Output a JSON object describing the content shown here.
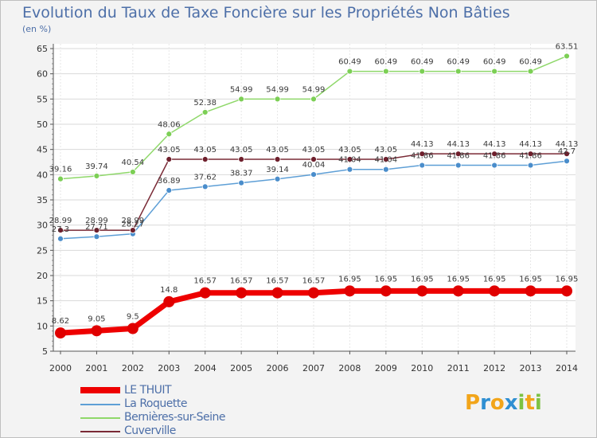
{
  "chart_data": {
    "type": "line",
    "title": "Evolution du Taux de Taxe Foncière sur les Propriétés Non Bâties",
    "ylabel": "(en %)",
    "ylim": [
      5,
      65
    ],
    "yticks": [
      5,
      10,
      15,
      20,
      25,
      30,
      35,
      40,
      45,
      50,
      55,
      60,
      65
    ],
    "categories": [
      "2000",
      "2001",
      "2002",
      "2003",
      "2004",
      "2005",
      "2006",
      "2007",
      "2008",
      "2009",
      "2010",
      "2011",
      "2012",
      "2013",
      "2014"
    ],
    "series": [
      {
        "name": "Bernières-sur-Seine",
        "color": "#8fd86a",
        "marker": "#7ccf55",
        "values": [
          39.16,
          39.74,
          40.54,
          48.06,
          52.38,
          54.99,
          54.99,
          54.99,
          60.49,
          60.49,
          60.49,
          60.49,
          60.49,
          60.49,
          63.51
        ],
        "labels": [
          "39.16",
          "39.74",
          "40.54",
          "48.06",
          "52.38",
          "54.99",
          "54.99",
          "54.99",
          "60.49",
          "60.49",
          "60.49",
          "60.49",
          "60.49",
          "60.49",
          "63.51"
        ]
      },
      {
        "name": "La Roquette",
        "color": "#5e9fd6",
        "marker": "#4a8dcb",
        "values": [
          27.3,
          27.71,
          28.27,
          36.89,
          37.62,
          38.37,
          39.14,
          40.04,
          41.04,
          41.04,
          41.86,
          41.86,
          41.86,
          41.86,
          42.7
        ],
        "labels": [
          "27.3",
          "27.71",
          "28.27",
          "36.89",
          "37.62",
          "38.37",
          "39.14",
          "40.04",
          "41.04",
          "41.04",
          "41.86",
          "41.86",
          "41.86",
          "41.86",
          "42.7"
        ]
      },
      {
        "name": "Cuverville",
        "color": "#7a2a36",
        "marker": "#6e1f2c",
        "values": [
          28.99,
          28.99,
          28.99,
          43.05,
          43.05,
          43.05,
          43.05,
          43.05,
          43.05,
          43.05,
          44.13,
          44.13,
          44.13,
          44.13,
          44.13
        ],
        "labels": [
          "28.99",
          "28.99",
          "28.99",
          "43.05",
          "43.05",
          "43.05",
          "43.05",
          "43.05",
          "43.05",
          "43.05",
          "44.13",
          "44.13",
          "44.13",
          "44.13",
          "44.13"
        ]
      },
      {
        "name": "LE THUIT",
        "color": "#ee0000",
        "marker": "#e00000",
        "values": [
          8.62,
          9.05,
          9.5,
          14.8,
          16.57,
          16.57,
          16.57,
          16.57,
          16.95,
          16.95,
          16.95,
          16.95,
          16.95,
          16.95,
          16.95
        ],
        "labels": [
          "8.62",
          "9.05",
          "9.5",
          "14.8",
          "16.57",
          "16.57",
          "16.57",
          "16.57",
          "16.95",
          "16.95",
          "16.95",
          "16.95",
          "16.95",
          "16.95",
          "16.95"
        ]
      }
    ],
    "legend": [
      "LE THUIT",
      "La Roquette",
      "Bernières-sur-Seine",
      "Cuverville"
    ]
  },
  "brand": {
    "letters": [
      "P",
      "r",
      "o",
      "x",
      "i",
      "t",
      "i"
    ],
    "colors": [
      "#f2a51a",
      "#2f8fd2",
      "#f2a51a",
      "#2f8fd2",
      "#7dc242",
      "#f2a51a",
      "#7dc242"
    ]
  }
}
